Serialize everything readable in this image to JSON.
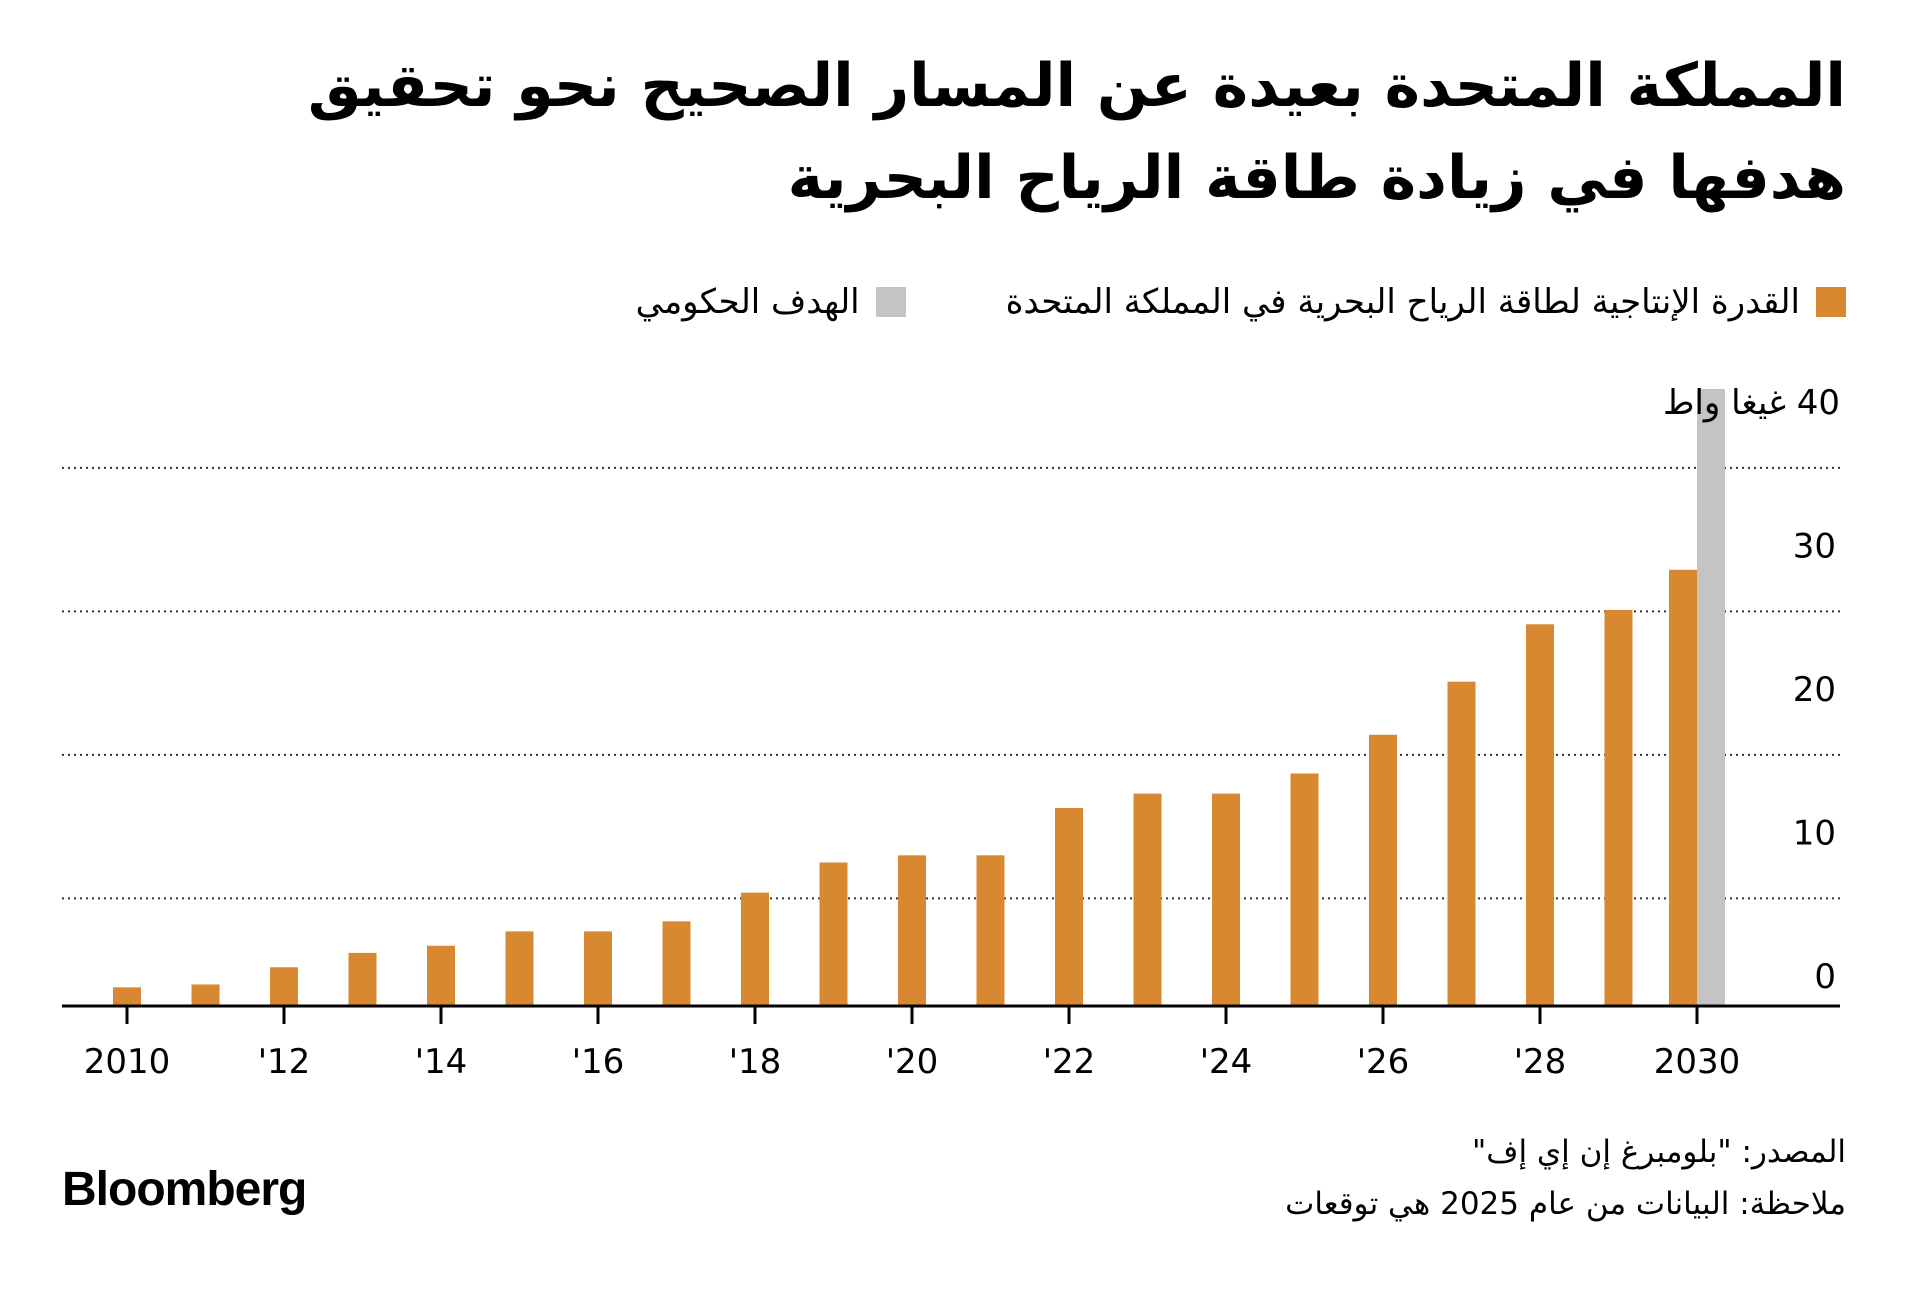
{
  "title_lines": [
    "المملكة المتحدة بعيدة عن المسار الصحيح نحو تحقيق",
    "هدفها في زيادة طاقة الرياح البحرية"
  ],
  "legend": [
    {
      "label": "القدرة الإنتاجية لطاقة الرياح البحرية في المملكة المتحدة",
      "color": "#D88830"
    },
    {
      "label": "الهدف الحكومي",
      "color": "#C4C4C4"
    }
  ],
  "chart_data": {
    "type": "bar",
    "unit_label": "غيغا واط",
    "ylim": [
      0,
      40
    ],
    "y_ticks": [
      0,
      10,
      20,
      30,
      40
    ],
    "grid": "dotted horizontal",
    "x_tick_labels": [
      "2010",
      "'12",
      "'14",
      "'16",
      "'18",
      "'20",
      "'22",
      "'24",
      "'26",
      "'28",
      "2030"
    ],
    "series": [
      {
        "name": "القدرة الإنتاجية لطاقة الرياح البحرية في المملكة المتحدة",
        "color": "#D88830",
        "x": [
          2010,
          2011,
          2012,
          2013,
          2014,
          2015,
          2016,
          2017,
          2018,
          2019,
          2020,
          2021,
          2022,
          2023,
          2024,
          2025,
          2026,
          2027,
          2028,
          2029,
          2030
        ],
        "values": [
          1.3,
          1.5,
          2.7,
          3.7,
          4.2,
          5.2,
          5.2,
          5.9,
          7.9,
          10.0,
          10.5,
          10.5,
          13.8,
          14.8,
          14.8,
          16.2,
          18.9,
          22.6,
          26.6,
          27.6,
          30.4
        ]
      },
      {
        "name": "الهدف الحكومي",
        "color": "#C4C4C4",
        "x": [
          2030
        ],
        "values": [
          43
        ]
      }
    ]
  },
  "footer": {
    "source": "المصدر: \"بلومبرغ إن إي إف\"",
    "note": "ملاحظة: البيانات من عام 2025 هي توقعات"
  },
  "brand": "Bloomberg"
}
